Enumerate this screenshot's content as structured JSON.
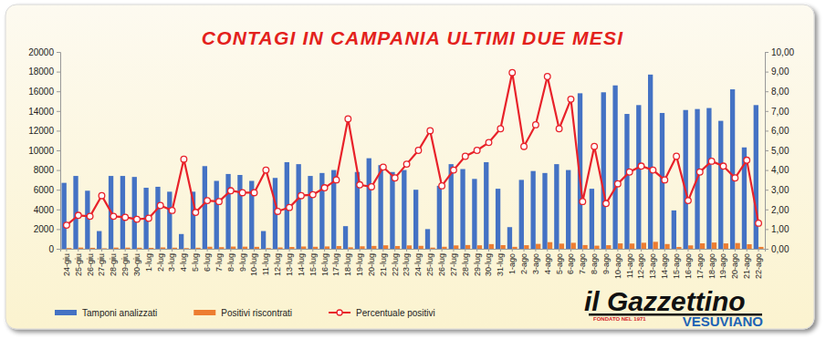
{
  "chart_data": {
    "type": "bar",
    "title": "CONTAGI IN CAMPANIA ULTIMI DUE MESI",
    "categories": [
      "24-giu",
      "25-giu",
      "26-giu",
      "27-giu",
      "28-giu",
      "29-giu",
      "30-giu",
      "1-lug",
      "2-lug",
      "3-lug",
      "4-lug",
      "5-lug",
      "6-lug",
      "7-lug",
      "8-lug",
      "9-lug",
      "10-lug",
      "11-lug",
      "12-lug",
      "13-lug",
      "14-lug",
      "15-lug",
      "16-lug",
      "17-lug",
      "18-lug",
      "19-lug",
      "20-lug",
      "21-lug",
      "22-lug",
      "23-lug",
      "24-lug",
      "25-lug",
      "26-lug",
      "27-lug",
      "28-lug",
      "29-lug",
      "30-lug",
      "31-lug",
      "1-ago",
      "2-ago",
      "3-ago",
      "4-ago",
      "5-ago",
      "6-ago",
      "7-ago",
      "8-ago",
      "9-ago",
      "10-ago",
      "11-ago",
      "12-ago",
      "13-ago",
      "14-ago",
      "15-ago",
      "16-ago",
      "17-ago",
      "18-ago",
      "19-ago",
      "20-ago",
      "21-ago",
      "22-ago"
    ],
    "series": [
      {
        "name": "Tamponi analizzati",
        "type": "bar",
        "color": "#4472c4",
        "values": [
          6700,
          7400,
          5900,
          1800,
          7400,
          7400,
          7300,
          6200,
          6300,
          5800,
          1500,
          5800,
          8400,
          6900,
          7600,
          7500,
          6900,
          1800,
          7200,
          8800,
          8600,
          7400,
          7700,
          8000,
          2300,
          7800,
          9200,
          8500,
          7800,
          8000,
          6000,
          2000,
          6400,
          8600,
          8100,
          7100,
          8800,
          6100,
          2200,
          7000,
          7900,
          7700,
          8600,
          8000,
          15800,
          6100,
          15900,
          16600,
          13700,
          14600,
          17700,
          13800,
          3900,
          14100,
          14200,
          14300,
          13000,
          16200,
          10300,
          14600
        ]
      },
      {
        "name": "Positivi riscontrati",
        "type": "bar",
        "color": "#ed7d31",
        "values": [
          80,
          126,
          97,
          49,
          122,
          118,
          110,
          96,
          139,
          113,
          68,
          107,
          206,
          166,
          224,
          214,
          197,
          72,
          137,
          185,
          232,
          204,
          239,
          280,
          152,
          254,
          290,
          353,
          281,
          344,
          300,
          120,
          205,
          344,
          381,
          355,
          475,
          372,
          197,
          364,
          498,
          674,
          525,
          608,
          379,
          317,
          366,
          548,
          534,
          613,
          708,
          483,
          183,
          345,
          554,
          636,
          546,
          583,
          464,
          190
        ]
      },
      {
        "name": "Percentuale positivi",
        "type": "line",
        "axis": "y2",
        "color": "#e8222a",
        "marker": "circle",
        "values": [
          1.2,
          1.7,
          1.65,
          2.7,
          1.65,
          1.6,
          1.5,
          1.55,
          2.2,
          1.95,
          4.55,
          1.85,
          2.45,
          2.4,
          2.95,
          2.85,
          2.85,
          4.0,
          1.9,
          2.1,
          2.7,
          2.75,
          3.1,
          3.5,
          6.6,
          3.25,
          3.15,
          4.15,
          3.6,
          4.3,
          5.0,
          6.0,
          3.2,
          4.0,
          4.7,
          5.0,
          5.4,
          6.1,
          8.95,
          5.2,
          6.3,
          8.75,
          6.1,
          7.6,
          2.4,
          5.2,
          2.3,
          3.3,
          3.9,
          4.2,
          4.0,
          3.5,
          4.7,
          2.45,
          3.9,
          4.45,
          4.2,
          3.6,
          4.5,
          1.3
        ]
      }
    ],
    "ylim": [
      0,
      20000
    ],
    "yticks": [
      0,
      2000,
      4000,
      6000,
      8000,
      10000,
      12000,
      14000,
      16000,
      18000,
      20000
    ],
    "y2lim": [
      0,
      10
    ],
    "y2ticks": [
      {
        "value": 0,
        "label": "0,00"
      },
      {
        "value": 1,
        "label": "1,00"
      },
      {
        "value": 2,
        "label": "2,00"
      },
      {
        "value": 3,
        "label": "3,00"
      },
      {
        "value": 4,
        "label": "4,00"
      },
      {
        "value": 5,
        "label": "5,00"
      },
      {
        "value": 6,
        "label": "6,00"
      },
      {
        "value": 7,
        "label": "7,00"
      },
      {
        "value": 8,
        "label": "8,00"
      },
      {
        "value": 9,
        "label": "9,00"
      },
      {
        "value": 10,
        "label": "10,00"
      }
    ],
    "grid": false,
    "legend": "bottom",
    "annotations": [
      "il Gazzettino",
      "VESUVIANO",
      "FONDATO NEL 1971"
    ]
  }
}
